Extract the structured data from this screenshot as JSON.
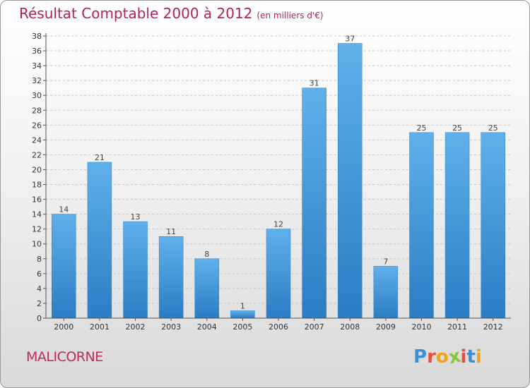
{
  "header": {
    "title": "Résultat Comptable 2000 à 2012",
    "unit": "(en milliers d'€)"
  },
  "footer": {
    "place": "MALICORNE",
    "logo": "Proxiti"
  },
  "colors": {
    "title": "#b3205c",
    "bar_top": "#5fb0ea",
    "bar_bottom": "#2a7dc4",
    "logo": [
      "#3a8fd6",
      "#e84c3d",
      "#f3a11b",
      "#8bc540",
      "#e84c3d",
      "#3a8fd6",
      "#f3a11b"
    ]
  },
  "chart_data": {
    "type": "bar",
    "title": "Résultat Comptable 2000 à 2012",
    "ylabel": "(en milliers d'€)",
    "xlabel": "",
    "categories": [
      "2000",
      "2001",
      "2002",
      "2003",
      "2004",
      "2005",
      "2006",
      "2007",
      "2008",
      "2009",
      "2010",
      "2011",
      "2012"
    ],
    "values": [
      14,
      21,
      13,
      11,
      8,
      1,
      12,
      31,
      37,
      7,
      25,
      25,
      25
    ],
    "ylim": [
      0,
      38
    ],
    "yticks": [
      0,
      2,
      4,
      6,
      8,
      10,
      12,
      14,
      16,
      18,
      20,
      22,
      24,
      26,
      28,
      30,
      32,
      34,
      36,
      38
    ],
    "grid": "horizontal dashed"
  }
}
